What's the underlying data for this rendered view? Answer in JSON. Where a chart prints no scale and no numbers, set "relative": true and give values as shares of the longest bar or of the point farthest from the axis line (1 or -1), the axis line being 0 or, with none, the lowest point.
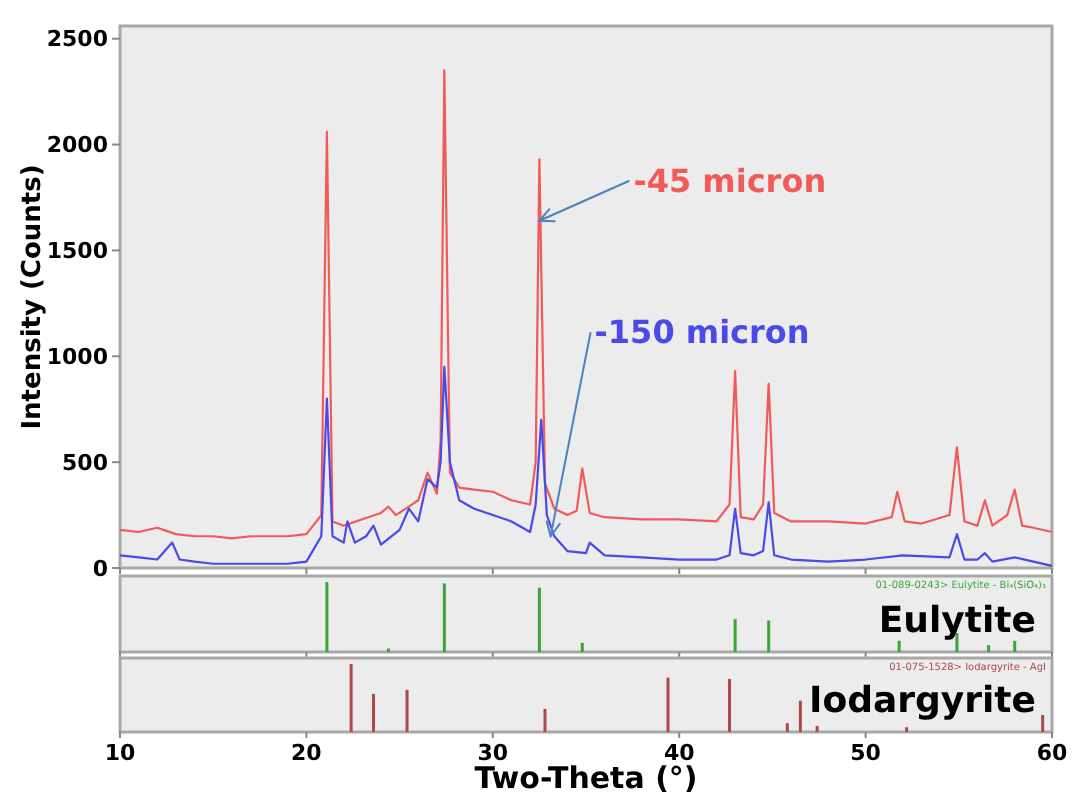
{
  "chart_data": [
    {
      "type": "line",
      "ylabel": "Intensity (Counts)",
      "xlim": [
        10,
        60
      ],
      "ylim": [
        0,
        2560
      ],
      "yticks": [
        0,
        500,
        1000,
        1500,
        2000,
        2500
      ],
      "xticks": [
        10,
        20,
        30,
        40,
        50,
        60
      ],
      "tick_labels": "y",
      "series": [
        {
          "color": "#f25a5a",
          "x": [
            10,
            11,
            12,
            13,
            14,
            15,
            16,
            17,
            18,
            19,
            20,
            20.8,
            21.1,
            21.4,
            22,
            23,
            24,
            24.4,
            24.8,
            25.5,
            26,
            26.5,
            27,
            27.2,
            27.4,
            27.7,
            28.2,
            29,
            30,
            31,
            32,
            32.3,
            32.5,
            32.8,
            33.3,
            34,
            34.5,
            34.8,
            35.2,
            36,
            38,
            40,
            42,
            42.7,
            43,
            43.3,
            44,
            44.5,
            44.8,
            45.1,
            46,
            48,
            50,
            51.4,
            51.7,
            52.1,
            53,
            54.5,
            54.9,
            55.3,
            56,
            56.4,
            56.8,
            57.6,
            58,
            58.4,
            59,
            60
          ],
          "values": [
            180,
            170,
            190,
            160,
            150,
            150,
            140,
            150,
            150,
            150,
            160,
            250,
            2060,
            220,
            200,
            230,
            260,
            290,
            250,
            290,
            320,
            450,
            350,
            600,
            2350,
            450,
            380,
            370,
            360,
            320,
            300,
            500,
            1930,
            400,
            280,
            250,
            270,
            470,
            260,
            240,
            230,
            230,
            220,
            300,
            930,
            240,
            230,
            300,
            870,
            260,
            220,
            220,
            210,
            240,
            360,
            220,
            210,
            250,
            570,
            220,
            200,
            320,
            200,
            250,
            370,
            200,
            190,
            170
          ]
        },
        {
          "color": "#4a4ae8",
          "x": [
            10,
            11,
            12,
            12.8,
            13.2,
            14,
            15,
            16,
            17,
            18,
            19,
            20,
            20.8,
            21.1,
            21.4,
            22,
            22.2,
            22.6,
            23.2,
            23.6,
            24,
            25,
            25.5,
            26,
            26.5,
            27,
            27.2,
            27.4,
            27.7,
            28.2,
            29,
            30,
            31,
            32,
            32.3,
            32.6,
            32.9,
            33.3,
            34,
            35,
            35.2,
            36,
            38,
            40,
            42,
            42.7,
            43,
            43.3,
            44,
            44.5,
            44.8,
            45.1,
            46,
            48,
            50,
            52,
            54.5,
            54.9,
            55.3,
            56,
            56.4,
            56.8,
            58,
            59,
            60
          ],
          "values": [
            60,
            50,
            40,
            120,
            40,
            30,
            20,
            20,
            20,
            20,
            20,
            30,
            150,
            800,
            150,
            120,
            220,
            120,
            150,
            200,
            110,
            180,
            280,
            220,
            420,
            380,
            500,
            950,
            500,
            320,
            280,
            250,
            220,
            170,
            300,
            700,
            250,
            150,
            80,
            70,
            120,
            60,
            50,
            40,
            40,
            60,
            280,
            70,
            60,
            80,
            310,
            60,
            40,
            30,
            40,
            60,
            50,
            160,
            40,
            40,
            70,
            30,
            50,
            30,
            10
          ]
        }
      ],
      "annotations": [
        {
          "text": "-45 micron",
          "x": 32.5,
          "y": 1640
        },
        {
          "text": "-150 micron",
          "x": 33.1,
          "y": 150
        }
      ]
    },
    {
      "type": "bar",
      "title": "Eulytite",
      "subtitle": "01-089-0243> Eulytite - Bi₄(SiO₄)₃",
      "relative": true,
      "xlim": [
        10,
        60
      ],
      "xticks": [
        10,
        20,
        30,
        40,
        50,
        60
      ],
      "tick_labels": false,
      "color": "#3aa63a",
      "x": [
        21.1,
        24.4,
        27.4,
        32.5,
        34.8,
        43.0,
        44.8,
        51.8,
        54.9,
        56.6,
        58.0
      ],
      "values": [
        1,
        0.05,
        0.98,
        0.92,
        0.13,
        0.47,
        0.45,
        0.16,
        0.27,
        0.1,
        0.16
      ]
    },
    {
      "type": "bar",
      "title": "Iodargyrite",
      "subtitle": "01-075-1528> Iodargyrite - AgI",
      "relative": true,
      "xlabel": "Two-Theta (°)",
      "xlim": [
        10,
        60
      ],
      "xticks": [
        10,
        20,
        30,
        40,
        50,
        60
      ],
      "tick_labels": "x",
      "color": "#b04848",
      "x": [
        22.4,
        23.6,
        25.4,
        32.8,
        39.4,
        42.7,
        45.8,
        46.5,
        47.4,
        52.2,
        59.5
      ],
      "values": [
        1,
        0.56,
        0.62,
        0.34,
        0.8,
        0.78,
        0.13,
        0.46,
        0.09,
        0.07,
        0.25
      ]
    }
  ]
}
